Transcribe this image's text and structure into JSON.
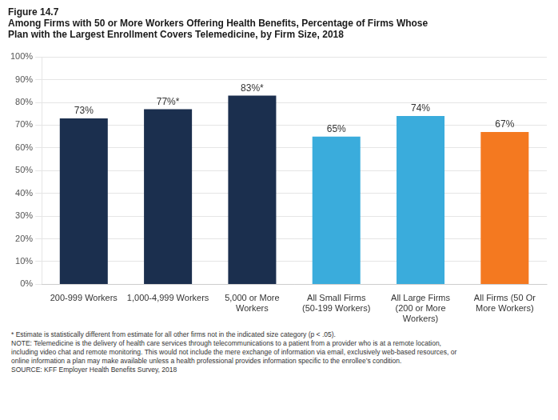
{
  "chart_data": {
    "type": "bar",
    "title": [
      "Figure 14.7",
      "Among Firms with 50 or More Workers Offering Health Benefits, Percentage of Firms Whose",
      "Plan with the Largest Enrollment Covers Telemedicine, by Firm Size, 2018"
    ],
    "categories": [
      "200-999 Workers",
      "1,000-4,999 Workers",
      "5,000 or More\nWorkers",
      "All Small Firms\n(50-199 Workers)",
      "All Large Firms\n(200 or More\nWorkers)",
      "All Firms (50 Or\nMore Workers)"
    ],
    "values": [
      73,
      77,
      83,
      65,
      74,
      67
    ],
    "value_labels": [
      "73%",
      "77%*",
      "83%*",
      "65%",
      "74%",
      "67%"
    ],
    "data_labels": true,
    "colors": [
      "#1b2f4e",
      "#1b2f4e",
      "#1b2f4e",
      "#3aacdc",
      "#3aacdc",
      "#f47920"
    ],
    "ylim": [
      0,
      100
    ],
    "yticks": [
      {
        "value": 0,
        "label": "0%"
      },
      {
        "value": 10,
        "label": "10%"
      },
      {
        "value": 20,
        "label": "20%"
      },
      {
        "value": 30,
        "label": "30%"
      },
      {
        "value": 40,
        "label": "40%"
      },
      {
        "value": 50,
        "label": "50%"
      },
      {
        "value": 60,
        "label": "60%"
      },
      {
        "value": 70,
        "label": "70%"
      },
      {
        "value": 80,
        "label": "80%"
      },
      {
        "value": 90,
        "label": "90%"
      },
      {
        "value": 100,
        "label": "100%"
      }
    ],
    "grid": true,
    "annotations": [
      "* Estimate is statistically different from estimate for all other firms not in the indicated size category (p < .05).",
      "NOTE: Telemedicine is the delivery of health care services through telecommunications to a patient from a provider who is at a remote location,",
      "including video chat and remote monitoring. This would not include the mere exchange of information via email, exclusively web-based resources, or",
      "online information a plan may make available unless a health professional provides information specific to the enrollee’s condition.",
      "SOURCE: KFF Employer Health Benefits Survey, 2018"
    ]
  }
}
